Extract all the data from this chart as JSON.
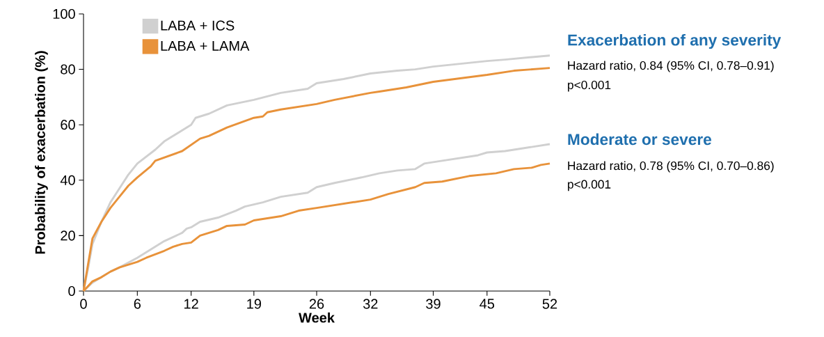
{
  "chart_data": {
    "type": "line",
    "xlabel": "Week",
    "ylabel": "Probability of exacerbation (%)",
    "xlim": [
      0,
      52
    ],
    "ylim": [
      0,
      100
    ],
    "xticks": [
      0,
      6,
      12,
      19,
      26,
      32,
      39,
      45,
      52
    ],
    "yticks": [
      0,
      20,
      40,
      60,
      80,
      100
    ],
    "legend": "top left",
    "grid": false,
    "marker": "none",
    "line_style": "solid",
    "annotations": [
      "Exacerbation of any severity",
      "Hazard ratio, 0.84 (95% CI, 0.78–0.91)",
      "p<0.001",
      "Moderate or severe",
      "Hazard ratio, 0.78 (95% CI, 0.70–0.86)",
      "p<0.001"
    ],
    "series": [
      {
        "name": "LABA + ICS",
        "color": "#d0d0d0",
        "x": [
          0,
          0.5,
          1,
          2,
          3,
          4,
          5,
          6,
          8,
          9,
          12,
          12.5,
          14,
          16,
          19,
          22,
          25,
          26,
          29,
          32,
          35,
          37,
          39,
          45,
          47,
          52
        ],
        "values": [
          0,
          8,
          17,
          25,
          32,
          37,
          42,
          46,
          51,
          54,
          60,
          62.5,
          64,
          67,
          69,
          71.5,
          73,
          75,
          76.5,
          78.5,
          79.5,
          80,
          81,
          83,
          83.5,
          85
        ]
      },
      {
        "name": "LABA + LAMA",
        "color": "#e8923a",
        "x": [
          0,
          1,
          2,
          3,
          4,
          5,
          6,
          7.5,
          8,
          11,
          13,
          14,
          16,
          19,
          20,
          20.5,
          22,
          26,
          28,
          32,
          33,
          36,
          39,
          45,
          48,
          52
        ],
        "values": [
          0,
          19,
          25,
          30,
          34,
          38,
          41,
          45,
          47,
          50.5,
          55,
          56,
          59,
          62.5,
          63,
          64.5,
          65.5,
          67.5,
          69,
          71.5,
          72,
          73.5,
          75.5,
          78,
          79.5,
          80.5
        ]
      },
      {
        "color": "#d0d0d0",
        "x": [
          0,
          1,
          2,
          3,
          4,
          6,
          8,
          9,
          11,
          11.5,
          12,
          13,
          15,
          17,
          18,
          20,
          22,
          25,
          26,
          28,
          31,
          33,
          35,
          37,
          38,
          40,
          43,
          44,
          45,
          47,
          49,
          52
        ],
        "values": [
          0,
          3,
          5,
          7,
          8.5,
          12,
          16,
          18,
          21,
          22.5,
          23,
          25,
          26.5,
          29,
          30.5,
          32,
          34,
          35.5,
          37.5,
          39,
          41,
          42.5,
          43.5,
          44,
          46,
          47,
          48.5,
          49,
          50,
          50.5,
          51.5,
          53
        ]
      },
      {
        "color": "#e8923a",
        "x": [
          0,
          1,
          2,
          3,
          4,
          6,
          7,
          9,
          10,
          11,
          12,
          13,
          15,
          16,
          18,
          19,
          22,
          24,
          26,
          29,
          32,
          34,
          37,
          38,
          40,
          43,
          46,
          48,
          50,
          51,
          52
        ],
        "values": [
          0,
          3.5,
          5,
          7,
          8.5,
          10.5,
          12,
          14.5,
          16,
          17,
          17.5,
          20,
          22,
          23.5,
          24,
          25.5,
          27,
          29,
          30,
          31.5,
          33,
          35,
          37.5,
          39,
          39.5,
          41.5,
          42.5,
          44,
          44.5,
          45.5,
          46
        ]
      }
    ]
  }
}
